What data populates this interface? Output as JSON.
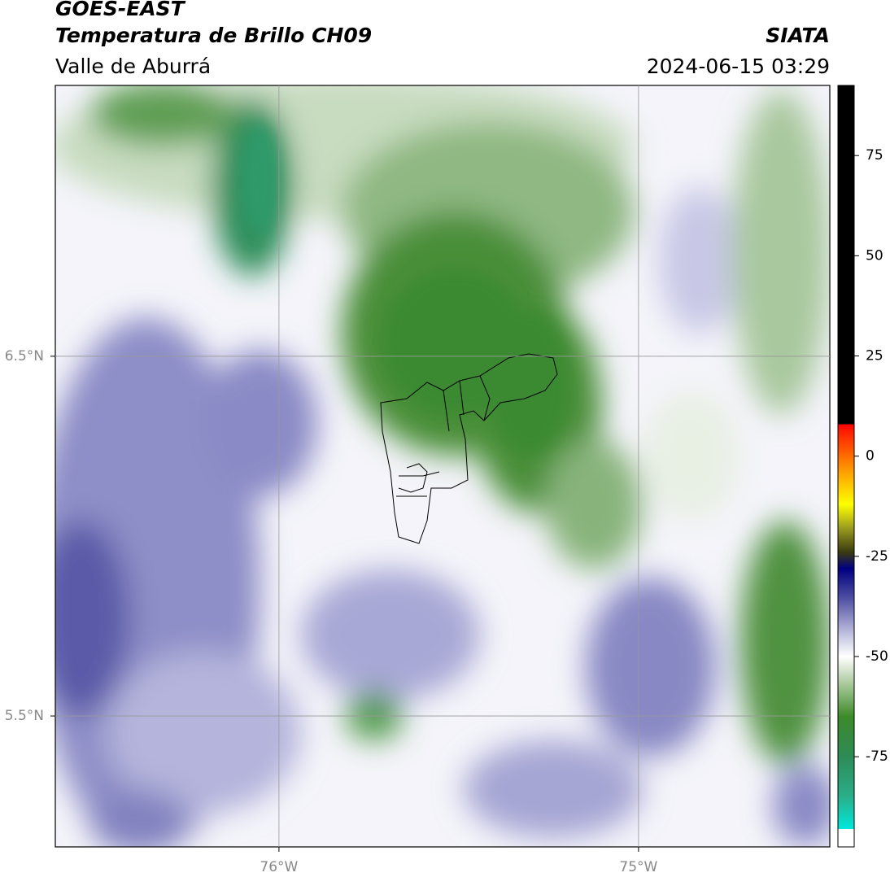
{
  "map": {
    "title": "GOES-EAST",
    "subtitle": "Temperatura de Brillo CH09",
    "region": "Valle de Aburrá",
    "source": "SIATA",
    "datetime": "2024-06-15 03:29",
    "xlim": [
      -76.622,
      -74.468
    ],
    "ylim": [
      5.136,
      7.253
    ],
    "xticks": [
      {
        "value": -76,
        "label": "76°W"
      },
      {
        "value": -75,
        "label": "75°W"
      }
    ],
    "yticks": [
      {
        "value": 6.5,
        "label": "6.5°N"
      },
      {
        "value": 5.5,
        "label": "5.5°N"
      }
    ],
    "grid": true,
    "colorbar": {
      "range": [
        -97.5,
        92.5
      ],
      "ticks": [
        -75,
        -50,
        -25,
        0,
        25,
        50,
        75
      ],
      "stops": [
        [
          -97.5,
          "#ffffff"
        ],
        [
          -93,
          "#ffffff"
        ],
        [
          -93,
          "#00e8dc"
        ],
        [
          -85,
          "#2aaf8a"
        ],
        [
          -75,
          "#2e8b57"
        ],
        [
          -65,
          "#3d8a2a"
        ],
        [
          -57,
          "#a8c89a"
        ],
        [
          -50,
          "#ffffff"
        ],
        [
          -45,
          "#c8c8e4"
        ],
        [
          -35,
          "#4a4aa0"
        ],
        [
          -28,
          "#000080"
        ],
        [
          -24,
          "#3a3a10"
        ],
        [
          -18,
          "#9a9a20"
        ],
        [
          -12,
          "#ffff00"
        ],
        [
          -4,
          "#ffa000"
        ],
        [
          6,
          "#ff2000"
        ],
        [
          8,
          "#ff0000"
        ],
        [
          8,
          "#000000"
        ],
        [
          92.5,
          "#000000"
        ]
      ]
    }
  }
}
